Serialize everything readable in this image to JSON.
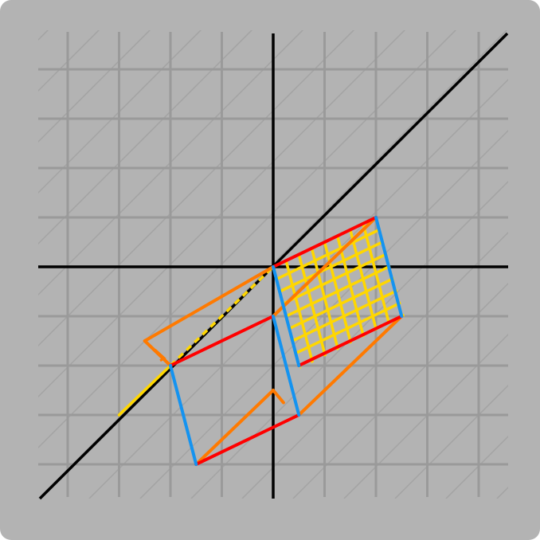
{
  "colors": {
    "background": "#b3b3b3",
    "grid": "#9a9a9a",
    "diagonal_hatch": "#a3a3a3",
    "axes": "#000000",
    "red": "#ff0000",
    "blue": "#1493f0",
    "orange": "#ff7a00",
    "yellow": "#ffd700"
  },
  "diagram": {
    "grid_range": [
      -4.5,
      4.5
    ],
    "axes_visible": true,
    "identity_line": "y = x",
    "lattice_step": [
      0.5,
      0.5
    ],
    "shapes": [
      {
        "name": "upper-parallelogram",
        "vertices": [
          [
            0,
            0
          ],
          [
            2,
            1
          ],
          [
            2.5,
            -1
          ],
          [
            0.5,
            -2
          ]
        ]
      },
      {
        "name": "lower-parallelogram",
        "vertices": [
          [
            -2,
            -2
          ],
          [
            0,
            -1
          ],
          [
            0.5,
            -3
          ],
          [
            -1.5,
            -4
          ]
        ]
      },
      {
        "name": "orange-triangle",
        "vertices": [
          [
            0,
            0
          ],
          [
            -2.5,
            -1.5
          ],
          [
            -2,
            -2
          ]
        ]
      }
    ]
  }
}
